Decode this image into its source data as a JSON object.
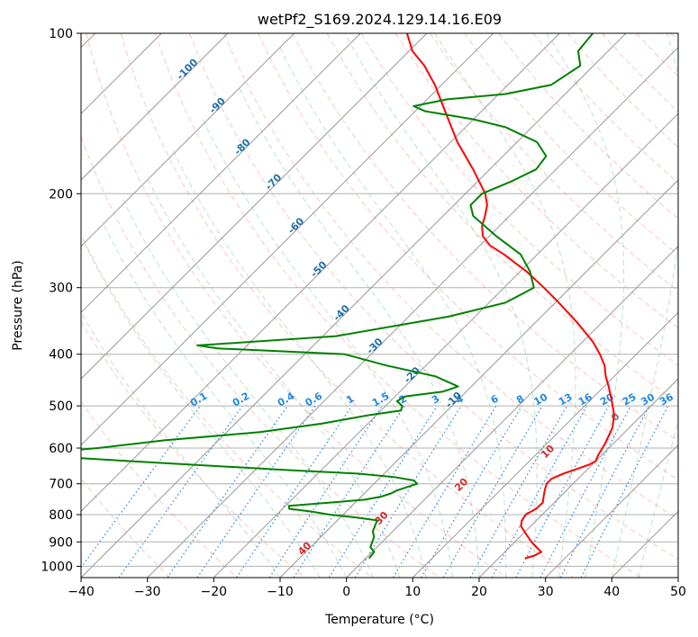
{
  "chart_data": {
    "type": "line",
    "title": "wetPf2_S169.2024.129.14.16.E09",
    "xlabel": "Temperature (°C)",
    "ylabel": "Pressure (hPa)",
    "xlim": [
      -40,
      50
    ],
    "ylim": [
      1050,
      100
    ],
    "y_scale": "log",
    "grid": true,
    "x_ticks": [
      -40,
      -30,
      -20,
      -10,
      0,
      10,
      20,
      30,
      40,
      50
    ],
    "y_ticks": [
      100,
      200,
      300,
      400,
      500,
      600,
      700,
      800,
      900,
      1000
    ],
    "series": [
      {
        "role": "temperature",
        "color": "#ff0000",
        "points": [
          [
            966,
            24.0
          ],
          [
            955,
            25.0
          ],
          [
            940,
            25.5
          ],
          [
            920,
            24.0
          ],
          [
            900,
            22.5
          ],
          [
            870,
            20.5
          ],
          [
            840,
            18.5
          ],
          [
            820,
            17.8
          ],
          [
            800,
            17.5
          ],
          [
            780,
            18.2
          ],
          [
            760,
            18.3
          ],
          [
            740,
            17.5
          ],
          [
            720,
            16.7
          ],
          [
            700,
            16.0
          ],
          [
            685,
            16.0
          ],
          [
            670,
            17.0
          ],
          [
            655,
            18.5
          ],
          [
            645,
            19.5
          ],
          [
            635,
            20.0
          ],
          [
            620,
            19.5
          ],
          [
            590,
            18.8
          ],
          [
            550,
            17.5
          ],
          [
            520,
            15.8
          ],
          [
            500,
            14.2
          ],
          [
            480,
            12.5
          ],
          [
            460,
            10.7
          ],
          [
            440,
            8.7
          ],
          [
            420,
            6.9
          ],
          [
            400,
            4.5
          ],
          [
            380,
            1.7
          ],
          [
            350,
            -3.5
          ],
          [
            320,
            -9.5
          ],
          [
            300,
            -14.0
          ],
          [
            280,
            -19.0
          ],
          [
            260,
            -25.0
          ],
          [
            250,
            -28.5
          ],
          [
            240,
            -31.0
          ],
          [
            230,
            -32.6
          ],
          [
            220,
            -33.7
          ],
          [
            210,
            -35.0
          ],
          [
            200,
            -37.0
          ],
          [
            180,
            -42.5
          ],
          [
            160,
            -49.0
          ],
          [
            140,
            -55.5
          ],
          [
            125,
            -61.0
          ],
          [
            115,
            -65.5
          ],
          [
            108,
            -69.5
          ],
          [
            100,
            -73.0
          ]
        ]
      },
      {
        "role": "dewpoint",
        "color": "#008000",
        "points": [
          [
            966,
            0.5
          ],
          [
            940,
            0.3
          ],
          [
            920,
            -1.0
          ],
          [
            900,
            -1.5
          ],
          [
            880,
            -2.0
          ],
          [
            860,
            -3.0
          ],
          [
            840,
            -3.5
          ],
          [
            820,
            -4.0
          ],
          [
            810,
            -7.5
          ],
          [
            800,
            -12.0
          ],
          [
            790,
            -15.0
          ],
          [
            780,
            -19.0
          ],
          [
            770,
            -19.5
          ],
          [
            760,
            -14.0
          ],
          [
            750,
            -9.0
          ],
          [
            740,
            -7.0
          ],
          [
            730,
            -6.0
          ],
          [
            720,
            -5.5
          ],
          [
            700,
            -3.5
          ],
          [
            690,
            -4.5
          ],
          [
            680,
            -8.0
          ],
          [
            670,
            -14.0
          ],
          [
            660,
            -25.0
          ],
          [
            640,
            -45.0
          ],
          [
            620,
            -65.0
          ],
          [
            610,
            -63.0
          ],
          [
            600,
            -57.0
          ],
          [
            580,
            -48.0
          ],
          [
            560,
            -35.0
          ],
          [
            540,
            -27.0
          ],
          [
            520,
            -21.0
          ],
          [
            510,
            -17.0
          ],
          [
            500,
            -17.5
          ],
          [
            490,
            -19.0
          ],
          [
            480,
            -18.5
          ],
          [
            470,
            -13.5
          ],
          [
            460,
            -12.0
          ],
          [
            440,
            -17.0
          ],
          [
            420,
            -26.0
          ],
          [
            400,
            -34.0
          ],
          [
            390,
            -54.0
          ],
          [
            385,
            -57.5
          ],
          [
            370,
            -38.0
          ],
          [
            340,
            -24.0
          ],
          [
            320,
            -17.5
          ],
          [
            300,
            -15.5
          ],
          [
            280,
            -18.5
          ],
          [
            260,
            -22.5
          ],
          [
            240,
            -29.0
          ],
          [
            220,
            -35.5
          ],
          [
            210,
            -37.5
          ],
          [
            200,
            -37.5
          ],
          [
            190,
            -35.0
          ],
          [
            180,
            -33.0
          ],
          [
            170,
            -33.5
          ],
          [
            160,
            -37.0
          ],
          [
            150,
            -44.0
          ],
          [
            145,
            -50.0
          ],
          [
            140,
            -58.5
          ],
          [
            137,
            -61.0
          ],
          [
            133,
            -57.0
          ],
          [
            130,
            -49.0
          ],
          [
            125,
            -43.5
          ],
          [
            115,
            -42.0
          ],
          [
            108,
            -44.5
          ],
          [
            100,
            -45.0
          ]
        ]
      }
    ],
    "dry_adiabat_labels": [
      "-100",
      "-90",
      "-80",
      "-70",
      "-60",
      "-50",
      "-40",
      "-30",
      "-20",
      "-10"
    ],
    "moist_adiabat_labels": [
      "0",
      "10",
      "20",
      "30",
      "40"
    ],
    "mixing_ratio_labels": [
      "0.1",
      "0.2",
      "0.4",
      "0.6",
      "1",
      "1.5",
      "2",
      "3",
      "4",
      "6",
      "8",
      "10",
      "13",
      "16",
      "20",
      "25",
      "30",
      "36"
    ]
  },
  "colors": {
    "temperature": "#ff0000",
    "dewpoint": "#008000",
    "isotherm": "#999999",
    "dry_adiabat": "#fa8072",
    "moist_adiabat": "#3cb371",
    "mixing_ratio": "#1e88e5",
    "dry_label": "#1f6fa8",
    "moist_label": "#d62728"
  }
}
